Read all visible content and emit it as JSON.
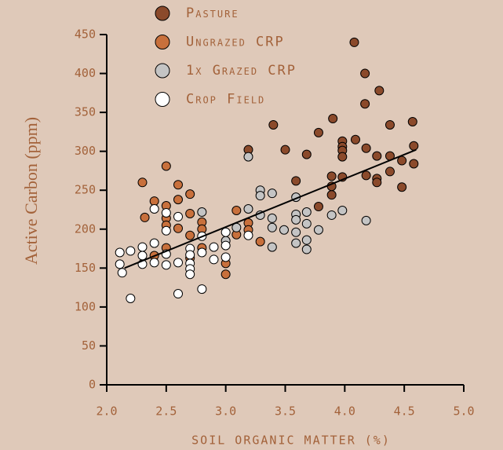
{
  "chart_data": {
    "type": "scatter",
    "ylabel": "Active Carbon (ppm)",
    "xlabel": "SOIL ORGANIC MATTER (%)",
    "xlim": [
      2,
      5
    ],
    "xticks": [
      {
        "value": 2,
        "label": "2.0"
      },
      2.5,
      {
        "value": 3,
        "label": "3.0"
      },
      3.5,
      {
        "value": 4,
        "label": "4.0"
      },
      4.5,
      {
        "value": 5,
        "label": "5.0"
      }
    ],
    "ylim": [
      0,
      450
    ],
    "yticks": [
      0,
      50,
      100,
      150,
      200,
      250,
      300,
      350,
      400,
      450
    ],
    "series": [
      {
        "name": "Pasture",
        "color": "#8b4a2b",
        "x": [
          4.08,
          4.17,
          4.29,
          4.17,
          4.38,
          4.57,
          3.4,
          3.9,
          3.19,
          3.5,
          3.78,
          3.98,
          3.98,
          3.98,
          4.09,
          4.18,
          3.98,
          3.68,
          4.27,
          4.38,
          4.58,
          4.48,
          4.38,
          3.98,
          3.89,
          4.18,
          4.27,
          4.27,
          4.58,
          4.48,
          3.89,
          3.59,
          3.78,
          3.89
        ],
        "values": [
          440,
          400,
          378,
          361,
          334,
          338,
          334,
          342,
          302,
          302,
          324,
          313,
          306,
          301,
          315,
          304,
          293,
          296,
          294,
          294,
          307,
          288,
          274,
          267,
          268,
          269,
          265,
          260,
          284,
          254,
          244,
          262,
          229,
          255
        ]
      },
      {
        "name": "Ungrazed CRP",
        "color": "#c8703c",
        "x": [
          2.3,
          2.32,
          2.4,
          2.5,
          2.5,
          2.5,
          2.5,
          2.6,
          2.6,
          2.6,
          2.7,
          2.7,
          2.7,
          2.7,
          2.8,
          2.8,
          2.8,
          3.0,
          3.0,
          3.09,
          3.09,
          3.19,
          3.19,
          3.29,
          2.4,
          2.5
        ],
        "values": [
          260,
          215,
          236,
          281,
          230,
          214,
          205,
          257,
          238,
          201,
          245,
          220,
          192,
          163,
          209,
          200,
          176,
          156,
          142,
          224,
          193,
          208,
          199,
          184,
          166,
          176
        ]
      },
      {
        "name": "1x Grazed CRP",
        "color": "#c4c4c4",
        "x": [
          3.19,
          3.29,
          3.29,
          3.39,
          3.59,
          3.19,
          3.29,
          3.39,
          3.39,
          3.49,
          3.59,
          3.59,
          3.59,
          3.59,
          3.68,
          3.68,
          3.68,
          3.68,
          3.78,
          3.89,
          3.98,
          4.18,
          3.39,
          3.09,
          3.0,
          2.8
        ],
        "values": [
          293,
          250,
          243,
          246,
          241,
          226,
          218,
          214,
          202,
          199,
          219,
          212,
          196,
          182,
          222,
          207,
          186,
          174,
          199,
          218,
          224,
          211,
          177,
          202,
          185,
          222
        ]
      },
      {
        "name": "Crop Field",
        "color": "#ffffff",
        "x": [
          2.11,
          2.11,
          2.13,
          2.2,
          2.2,
          2.3,
          2.3,
          2.3,
          2.4,
          2.4,
          2.4,
          2.5,
          2.5,
          2.5,
          2.5,
          2.6,
          2.6,
          2.6,
          2.7,
          2.7,
          2.7,
          2.7,
          2.7,
          2.8,
          2.8,
          2.8,
          2.9,
          2.9,
          3.0,
          3.0,
          3.0,
          3.19
        ],
        "values": [
          170,
          155,
          144,
          172,
          111,
          177,
          166,
          155,
          226,
          182,
          157,
          221,
          198,
          168,
          154,
          216,
          157,
          117,
          175,
          167,
          156,
          149,
          142,
          191,
          170,
          123,
          177,
          161,
          196,
          179,
          164,
          192
        ]
      }
    ],
    "trendline": {
      "x": [
        2.15,
        4.6
      ],
      "values": [
        150,
        302
      ]
    }
  }
}
